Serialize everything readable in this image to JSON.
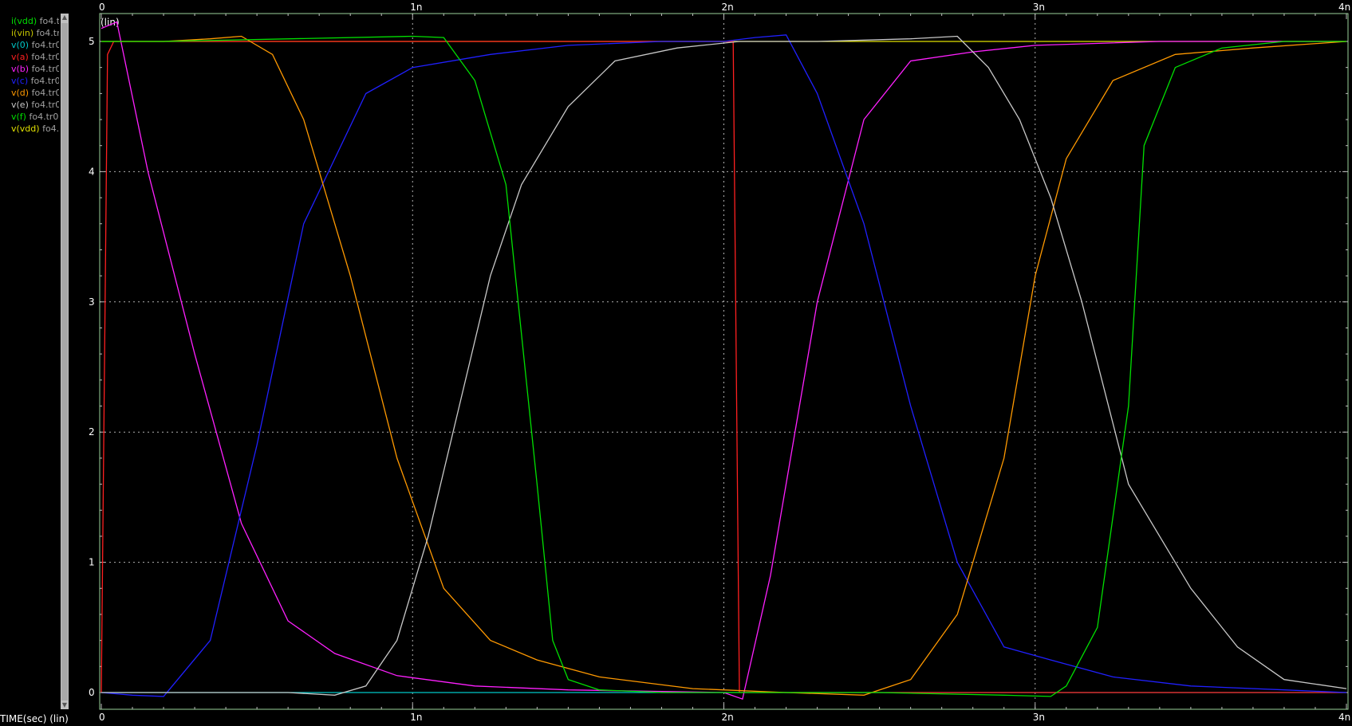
{
  "legend": [
    {
      "label": "i(vdd)",
      "file": "fo4.tr0",
      "color": "#00e000"
    },
    {
      "label": "i(vin)",
      "file": "fo4.tr0",
      "color": "#c8c800"
    },
    {
      "label": "v(0)",
      "file": "fo4.tr0",
      "color": "#00c8c8"
    },
    {
      "label": "v(a)",
      "file": "fo4.tr0",
      "color": "#ff2020"
    },
    {
      "label": "v(b)",
      "file": "fo4.tr0",
      "color": "#ff20ff"
    },
    {
      "label": "v(c)",
      "file": "fo4.tr0",
      "color": "#2020ff"
    },
    {
      "label": "v(d)",
      "file": "fo4.tr0",
      "color": "#ff9900"
    },
    {
      "label": "v(e)",
      "file": "fo4.tr0",
      "color": "#c8c8c8"
    },
    {
      "label": "v(f)",
      "file": "fo4.tr0",
      "color": "#00e000"
    },
    {
      "label": "v(vdd)",
      "file": "fo4.tr0",
      "color": "#e0e000"
    }
  ],
  "scale_label": "(lin)",
  "xaxis_title": "TIME(sec) (lin)",
  "chart_data": {
    "type": "line",
    "x_ticks": [
      "0",
      "1n",
      "2n",
      "3n",
      "4n"
    ],
    "y_ticks": [
      "0",
      "1",
      "2",
      "3",
      "4",
      "5"
    ],
    "xlim": [
      0,
      4
    ],
    "ylim": [
      -0.1,
      5.2
    ],
    "grid": true,
    "x_unit": "ns",
    "series": [
      {
        "name": "v(vdd)",
        "color": "#e0e000",
        "x": [
          0,
          4
        ],
        "y": [
          5,
          5
        ]
      },
      {
        "name": "v(0)",
        "color": "#00c8c8",
        "x": [
          0,
          4
        ],
        "y": [
          0,
          0
        ]
      },
      {
        "name": "v(a)",
        "color": "#ff2020",
        "x": [
          0,
          0.02,
          0.04,
          2.03,
          2.05,
          4
        ],
        "y": [
          0,
          4.9,
          5,
          5,
          0,
          0
        ]
      },
      {
        "name": "v(b)",
        "color": "#ff20ff",
        "x": [
          0,
          0.05,
          0.15,
          0.3,
          0.45,
          0.6,
          0.75,
          0.95,
          1.2,
          1.5,
          2.0,
          2.06,
          2.15,
          2.3,
          2.45,
          2.6,
          2.8,
          3.0,
          3.4,
          4.0
        ],
        "y": [
          5.1,
          5.15,
          4.0,
          2.6,
          1.3,
          0.55,
          0.3,
          0.13,
          0.05,
          0.02,
          0.0,
          -0.05,
          0.9,
          3.0,
          4.4,
          4.85,
          4.92,
          4.97,
          5,
          5
        ]
      },
      {
        "name": "v(c)",
        "color": "#2020ff",
        "x": [
          0,
          0.1,
          0.2,
          0.35,
          0.5,
          0.65,
          0.85,
          1.0,
          1.25,
          1.5,
          1.8,
          2.0,
          2.1,
          2.2,
          2.3,
          2.45,
          2.6,
          2.75,
          2.9,
          3.05,
          3.25,
          3.5,
          3.8,
          4.0
        ],
        "y": [
          0,
          -0.02,
          -0.03,
          0.4,
          1.9,
          3.6,
          4.6,
          4.8,
          4.9,
          4.97,
          5,
          5,
          5.03,
          5.05,
          4.6,
          3.6,
          2.2,
          1.0,
          0.35,
          0.25,
          0.12,
          0.05,
          0.02,
          0
        ]
      },
      {
        "name": "v(d)",
        "color": "#ff9900",
        "x": [
          0,
          0.2,
          0.35,
          0.45,
          0.55,
          0.65,
          0.8,
          0.95,
          1.1,
          1.25,
          1.4,
          1.6,
          1.9,
          2.2,
          2.45,
          2.6,
          2.75,
          2.9,
          3.0,
          3.1,
          3.25,
          3.45,
          3.7,
          4.0
        ],
        "y": [
          5,
          5,
          5.02,
          5.04,
          4.9,
          4.4,
          3.2,
          1.8,
          0.8,
          0.4,
          0.25,
          0.12,
          0.03,
          0.0,
          -0.02,
          0.1,
          0.6,
          1.8,
          3.2,
          4.1,
          4.7,
          4.9,
          4.95,
          5
        ]
      },
      {
        "name": "v(e)",
        "color": "#c8c8c8",
        "x": [
          0,
          0.6,
          0.75,
          0.85,
          0.95,
          1.05,
          1.15,
          1.25,
          1.35,
          1.5,
          1.65,
          1.85,
          2.05,
          2.3,
          2.6,
          2.75,
          2.85,
          2.95,
          3.05,
          3.15,
          3.3,
          3.5,
          3.65,
          3.8,
          4.0
        ],
        "y": [
          0,
          0,
          -0.02,
          0.05,
          0.4,
          1.2,
          2.2,
          3.2,
          3.9,
          4.5,
          4.85,
          4.95,
          5,
          5,
          5.02,
          5.04,
          4.8,
          4.4,
          3.8,
          3.0,
          1.6,
          0.8,
          0.35,
          0.1,
          0.03
        ]
      },
      {
        "name": "v(f)",
        "color": "#00e000",
        "x": [
          0,
          0.2,
          1.0,
          1.1,
          1.2,
          1.3,
          1.4,
          1.45,
          1.5,
          1.6,
          1.8,
          2.0,
          2.5,
          2.9,
          3.05,
          3.1,
          3.2,
          3.3,
          3.35,
          3.45,
          3.6,
          3.8,
          4.0
        ],
        "y": [
          5,
          5,
          5.04,
          5.03,
          4.7,
          3.9,
          1.6,
          0.4,
          0.1,
          0.02,
          0,
          0,
          0,
          -0.02,
          -0.03,
          0.05,
          0.5,
          2.2,
          4.2,
          4.8,
          4.95,
          5,
          5
        ]
      }
    ]
  }
}
